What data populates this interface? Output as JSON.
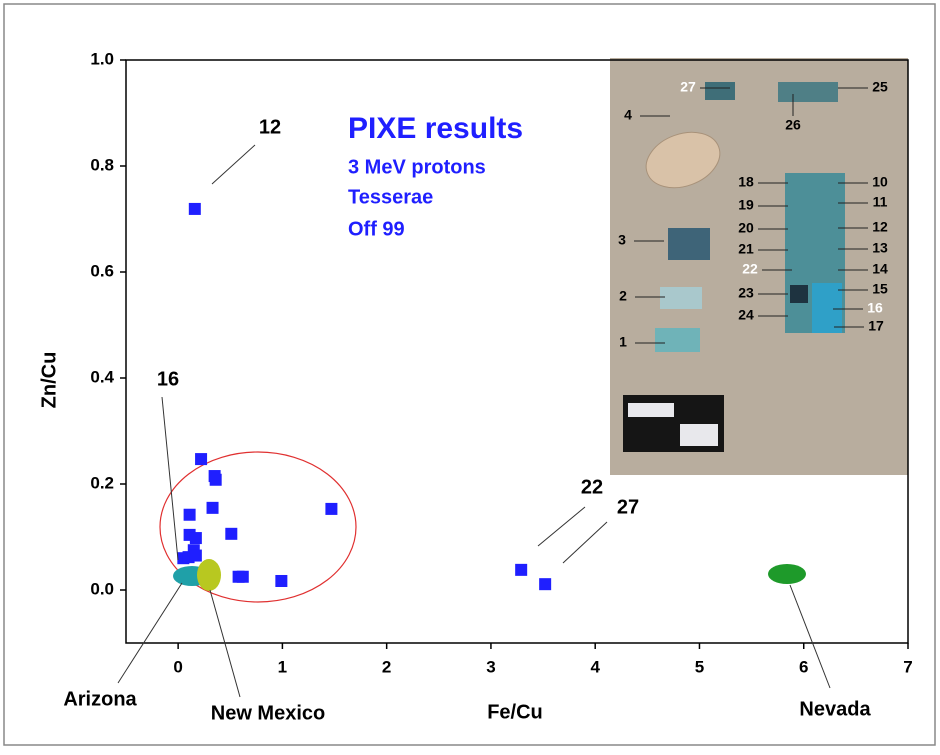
{
  "chart_data": {
    "type": "scatter",
    "title": "PIXE results",
    "subtitle": [
      "3 MeV protons",
      "Tesserae",
      "Off 99"
    ],
    "x_label": "Fe/Cu",
    "y_label": "Zn/Cu",
    "xlim": [
      -0.5,
      7
    ],
    "ylim": [
      -0.1,
      1.0
    ],
    "xticks": [
      0,
      1,
      2,
      3,
      4,
      5,
      6,
      7
    ],
    "yticks": [
      {
        "value": 0,
        "label": "0.0"
      },
      0.2,
      0.4,
      0.6,
      0.8,
      {
        "value": 1,
        "label": "1.0"
      }
    ],
    "series": [
      {
        "color": "#1f1fff",
        "x": [
          0.16,
          0.22,
          0.35,
          0.36,
          0.11,
          0.33,
          1.47,
          0.51,
          0.11,
          0.17,
          0.05,
          0.1,
          0.15,
          0.17,
          0.58,
          0.62,
          0.99,
          3.29,
          3.52
        ],
        "values": [
          0.719,
          0.247,
          0.215,
          0.208,
          0.142,
          0.155,
          0.153,
          0.106,
          0.104,
          0.098,
          0.06,
          0.062,
          0.075,
          0.065,
          0.025,
          0.025,
          0.017,
          0.038,
          0.011
        ]
      }
    ],
    "annotations": [
      "12",
      "16",
      "22",
      "27",
      "Arizona",
      "New Mexico",
      "Nevada"
    ],
    "inset_labels": [
      "27",
      "25",
      "26",
      "4",
      "18",
      "10",
      "19",
      "11",
      "12",
      "20",
      "21",
      "13",
      "22",
      "14",
      "23",
      "15",
      "16",
      "24",
      "17",
      "3",
      "2",
      "1"
    ]
  }
}
